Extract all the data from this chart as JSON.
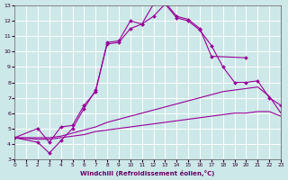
{
  "xlabel": "Windchill (Refroidissement éolien,°C)",
  "xlim": [
    0,
    23
  ],
  "ylim": [
    3,
    13
  ],
  "xticks": [
    0,
    1,
    2,
    3,
    4,
    5,
    6,
    7,
    8,
    9,
    10,
    11,
    12,
    13,
    14,
    15,
    16,
    17,
    18,
    19,
    20,
    21,
    22,
    23
  ],
  "yticks": [
    3,
    4,
    5,
    6,
    7,
    8,
    9,
    10,
    11,
    12,
    13
  ],
  "bg_color": "#cce8e8",
  "line_color": "#990099",
  "grid_color": "#aacccc",
  "grid_color2": "#ffffff",
  "lines": [
    {
      "x": [
        0,
        2,
        3,
        4,
        5,
        6,
        7,
        8,
        9,
        10,
        11,
        12,
        13,
        14,
        15,
        16,
        17,
        20
      ],
      "y": [
        4.4,
        5.0,
        4.1,
        5.1,
        5.2,
        6.5,
        7.4,
        10.6,
        10.7,
        12.0,
        11.8,
        13.1,
        13.2,
        12.3,
        12.1,
        11.5,
        9.7,
        9.6
      ],
      "marker": true
    },
    {
      "x": [
        0,
        2,
        3,
        4,
        5,
        6,
        7,
        8,
        9,
        10,
        11,
        12,
        13,
        14,
        15,
        16,
        17,
        18,
        19,
        20,
        21,
        22,
        23
      ],
      "y": [
        4.4,
        4.1,
        3.4,
        4.2,
        5.0,
        6.3,
        7.5,
        10.5,
        10.6,
        11.5,
        11.8,
        12.3,
        13.1,
        12.2,
        12.0,
        11.4,
        10.4,
        9.0,
        8.0,
        8.0,
        8.1,
        7.0,
        6.5
      ],
      "marker": true
    },
    {
      "x": [
        0,
        2,
        3,
        4,
        5,
        6,
        7,
        8,
        9,
        10,
        11,
        12,
        13,
        14,
        15,
        16,
        17,
        18,
        19,
        20,
        21,
        22,
        23
      ],
      "y": [
        4.4,
        4.4,
        4.4,
        4.5,
        4.7,
        4.9,
        5.1,
        5.4,
        5.6,
        5.8,
        6.0,
        6.2,
        6.4,
        6.6,
        6.8,
        7.0,
        7.2,
        7.4,
        7.5,
        7.6,
        7.7,
        7.1,
        6.0
      ],
      "marker": false
    },
    {
      "x": [
        0,
        2,
        3,
        4,
        5,
        6,
        7,
        8,
        9,
        10,
        11,
        12,
        13,
        14,
        15,
        16,
        17,
        18,
        19,
        20,
        21,
        22,
        23
      ],
      "y": [
        4.4,
        4.3,
        4.3,
        4.4,
        4.5,
        4.6,
        4.8,
        4.9,
        5.0,
        5.1,
        5.2,
        5.3,
        5.4,
        5.5,
        5.6,
        5.7,
        5.8,
        5.9,
        6.0,
        6.0,
        6.1,
        6.1,
        5.8
      ],
      "marker": false
    }
  ]
}
